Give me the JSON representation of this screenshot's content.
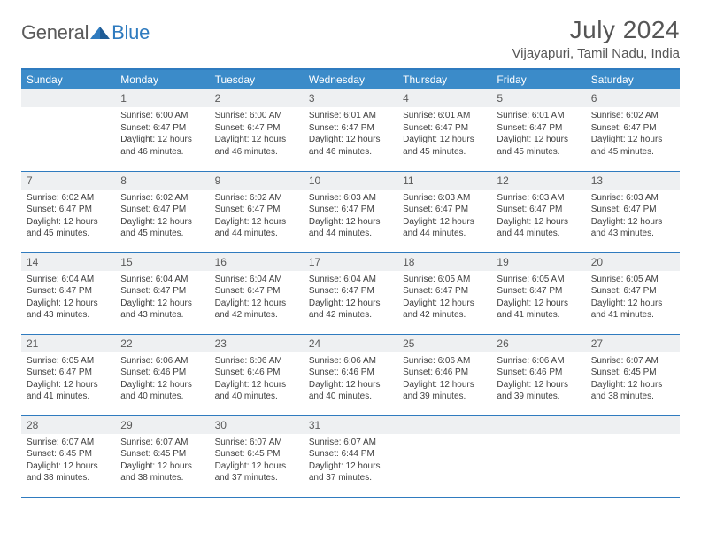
{
  "brand": {
    "part1": "General",
    "part2": "Blue"
  },
  "title": "July 2024",
  "location": "Vijayapuri, Tamil Nadu, India",
  "style": {
    "header_bg": "#3b8bc9",
    "header_fg": "#ffffff",
    "border_color": "#2f7bbf",
    "daynum_bg": "#eef0f2",
    "text_color": "#3f3f3f",
    "title_color": "#555555",
    "month_fontsize": 28,
    "location_fontsize": 15,
    "dayhead_fontsize": 12,
    "body_fontsize": 10
  },
  "weekdays": [
    "Sunday",
    "Monday",
    "Tuesday",
    "Wednesday",
    "Thursday",
    "Friday",
    "Saturday"
  ],
  "weeks": [
    [
      null,
      {
        "n": "1",
        "sr": "6:00 AM",
        "ss": "6:47 PM",
        "dl": "12 hours and 46 minutes."
      },
      {
        "n": "2",
        "sr": "6:00 AM",
        "ss": "6:47 PM",
        "dl": "12 hours and 46 minutes."
      },
      {
        "n": "3",
        "sr": "6:01 AM",
        "ss": "6:47 PM",
        "dl": "12 hours and 46 minutes."
      },
      {
        "n": "4",
        "sr": "6:01 AM",
        "ss": "6:47 PM",
        "dl": "12 hours and 45 minutes."
      },
      {
        "n": "5",
        "sr": "6:01 AM",
        "ss": "6:47 PM",
        "dl": "12 hours and 45 minutes."
      },
      {
        "n": "6",
        "sr": "6:02 AM",
        "ss": "6:47 PM",
        "dl": "12 hours and 45 minutes."
      }
    ],
    [
      {
        "n": "7",
        "sr": "6:02 AM",
        "ss": "6:47 PM",
        "dl": "12 hours and 45 minutes."
      },
      {
        "n": "8",
        "sr": "6:02 AM",
        "ss": "6:47 PM",
        "dl": "12 hours and 45 minutes."
      },
      {
        "n": "9",
        "sr": "6:02 AM",
        "ss": "6:47 PM",
        "dl": "12 hours and 44 minutes."
      },
      {
        "n": "10",
        "sr": "6:03 AM",
        "ss": "6:47 PM",
        "dl": "12 hours and 44 minutes."
      },
      {
        "n": "11",
        "sr": "6:03 AM",
        "ss": "6:47 PM",
        "dl": "12 hours and 44 minutes."
      },
      {
        "n": "12",
        "sr": "6:03 AM",
        "ss": "6:47 PM",
        "dl": "12 hours and 44 minutes."
      },
      {
        "n": "13",
        "sr": "6:03 AM",
        "ss": "6:47 PM",
        "dl": "12 hours and 43 minutes."
      }
    ],
    [
      {
        "n": "14",
        "sr": "6:04 AM",
        "ss": "6:47 PM",
        "dl": "12 hours and 43 minutes."
      },
      {
        "n": "15",
        "sr": "6:04 AM",
        "ss": "6:47 PM",
        "dl": "12 hours and 43 minutes."
      },
      {
        "n": "16",
        "sr": "6:04 AM",
        "ss": "6:47 PM",
        "dl": "12 hours and 42 minutes."
      },
      {
        "n": "17",
        "sr": "6:04 AM",
        "ss": "6:47 PM",
        "dl": "12 hours and 42 minutes."
      },
      {
        "n": "18",
        "sr": "6:05 AM",
        "ss": "6:47 PM",
        "dl": "12 hours and 42 minutes."
      },
      {
        "n": "19",
        "sr": "6:05 AM",
        "ss": "6:47 PM",
        "dl": "12 hours and 41 minutes."
      },
      {
        "n": "20",
        "sr": "6:05 AM",
        "ss": "6:47 PM",
        "dl": "12 hours and 41 minutes."
      }
    ],
    [
      {
        "n": "21",
        "sr": "6:05 AM",
        "ss": "6:47 PM",
        "dl": "12 hours and 41 minutes."
      },
      {
        "n": "22",
        "sr": "6:06 AM",
        "ss": "6:46 PM",
        "dl": "12 hours and 40 minutes."
      },
      {
        "n": "23",
        "sr": "6:06 AM",
        "ss": "6:46 PM",
        "dl": "12 hours and 40 minutes."
      },
      {
        "n": "24",
        "sr": "6:06 AM",
        "ss": "6:46 PM",
        "dl": "12 hours and 40 minutes."
      },
      {
        "n": "25",
        "sr": "6:06 AM",
        "ss": "6:46 PM",
        "dl": "12 hours and 39 minutes."
      },
      {
        "n": "26",
        "sr": "6:06 AM",
        "ss": "6:46 PM",
        "dl": "12 hours and 39 minutes."
      },
      {
        "n": "27",
        "sr": "6:07 AM",
        "ss": "6:45 PM",
        "dl": "12 hours and 38 minutes."
      }
    ],
    [
      {
        "n": "28",
        "sr": "6:07 AM",
        "ss": "6:45 PM",
        "dl": "12 hours and 38 minutes."
      },
      {
        "n": "29",
        "sr": "6:07 AM",
        "ss": "6:45 PM",
        "dl": "12 hours and 38 minutes."
      },
      {
        "n": "30",
        "sr": "6:07 AM",
        "ss": "6:45 PM",
        "dl": "12 hours and 37 minutes."
      },
      {
        "n": "31",
        "sr": "6:07 AM",
        "ss": "6:44 PM",
        "dl": "12 hours and 37 minutes."
      },
      null,
      null,
      null
    ]
  ],
  "labels": {
    "sunrise": "Sunrise: ",
    "sunset": "Sunset: ",
    "daylight": "Daylight: "
  }
}
